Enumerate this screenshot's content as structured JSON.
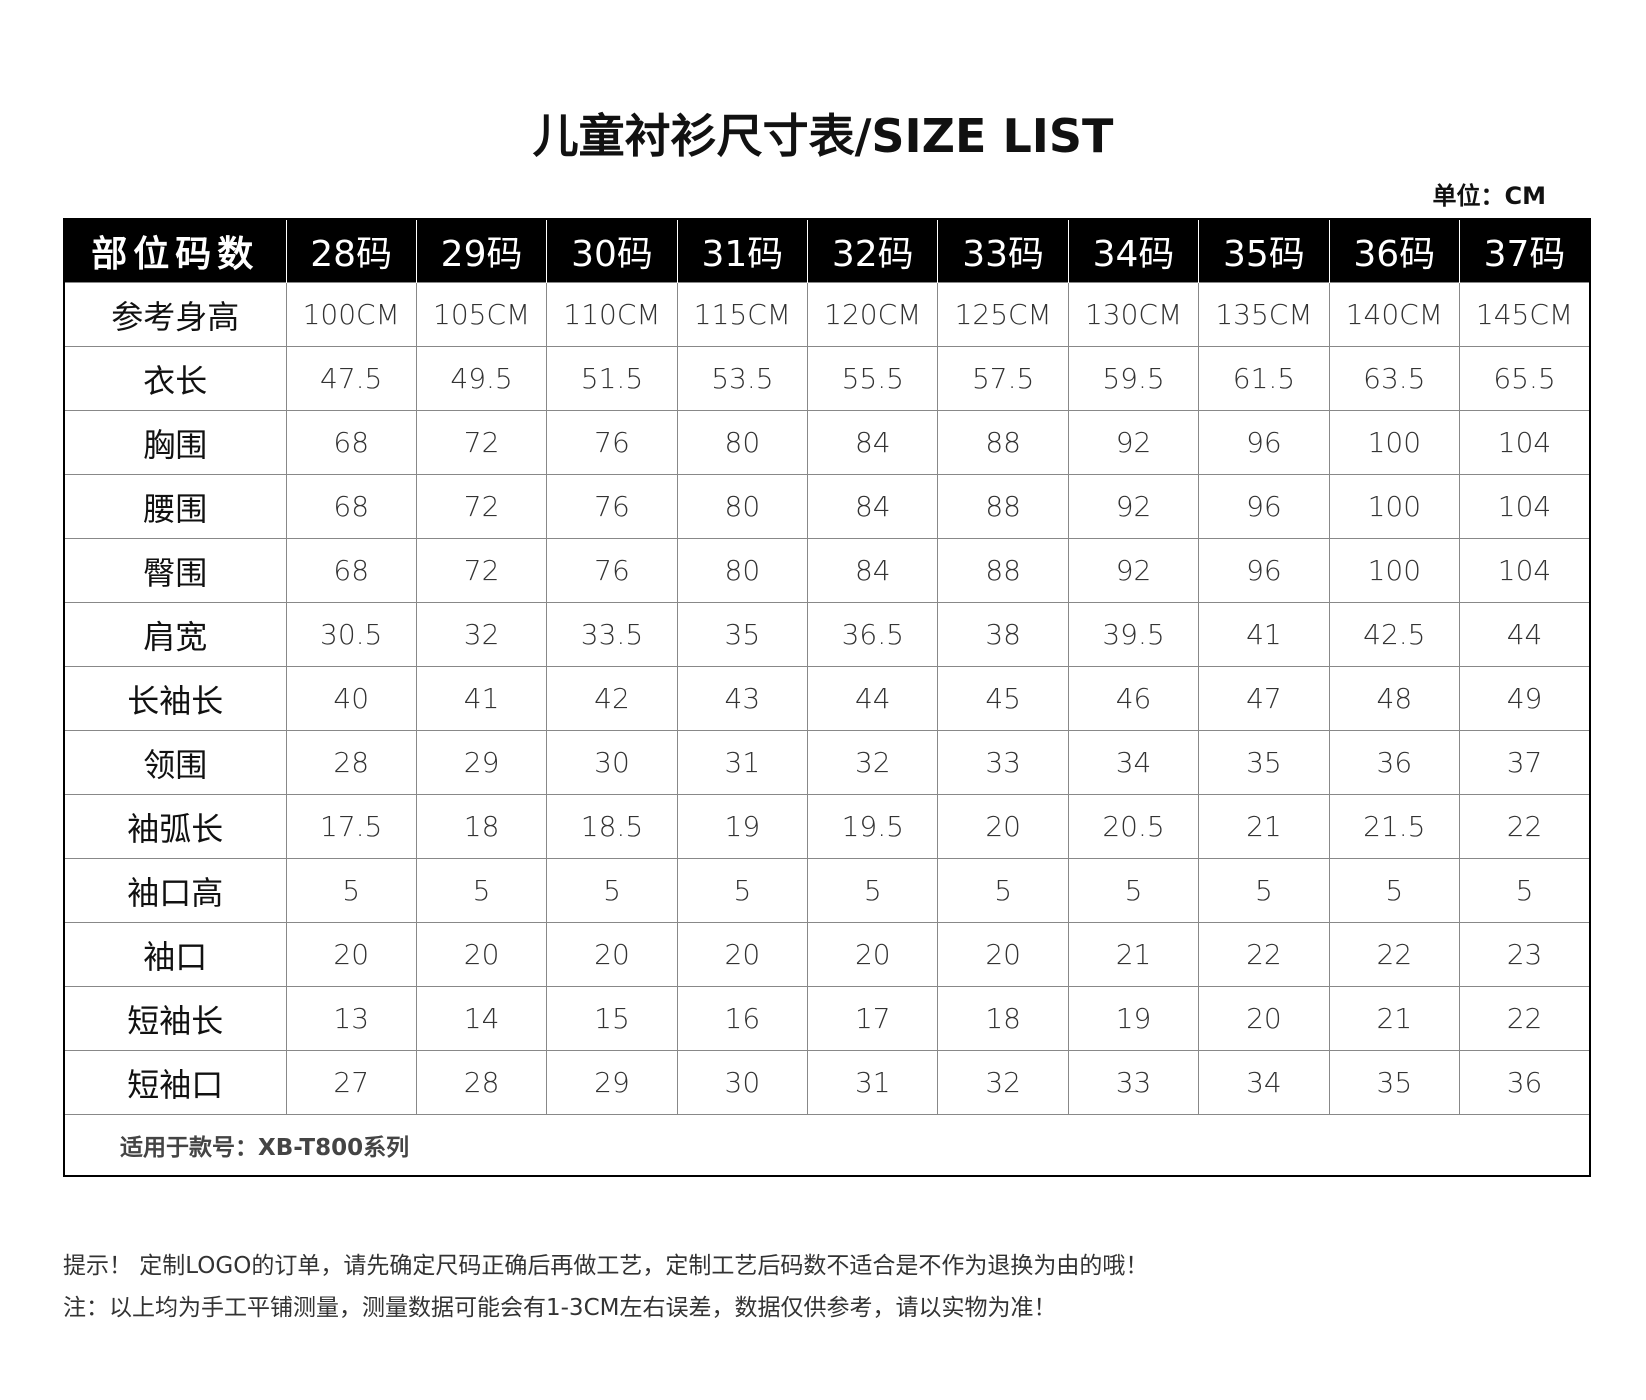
{
  "title": "儿童衬衫尺寸表/SIZE LIST",
  "unit": "单位：CM",
  "table": {
    "header": [
      "部位码数",
      "28码",
      "29码",
      "30码",
      "31码",
      "32码",
      "33码",
      "34码",
      "35码",
      "36码",
      "37码"
    ],
    "rows": [
      {
        "label": "参考身高",
        "values": [
          "100CM",
          "105CM",
          "110CM",
          "115CM",
          "120CM",
          "125CM",
          "130CM",
          "135CM",
          "140CM",
          "145CM"
        ]
      },
      {
        "label": "衣长",
        "values": [
          "47.5",
          "49.5",
          "51.5",
          "53.5",
          "55.5",
          "57.5",
          "59.5",
          "61.5",
          "63.5",
          "65.5"
        ]
      },
      {
        "label": "胸围",
        "values": [
          "68",
          "72",
          "76",
          "80",
          "84",
          "88",
          "92",
          "96",
          "100",
          "104"
        ]
      },
      {
        "label": "腰围",
        "values": [
          "68",
          "72",
          "76",
          "80",
          "84",
          "88",
          "92",
          "96",
          "100",
          "104"
        ]
      },
      {
        "label": "臀围",
        "values": [
          "68",
          "72",
          "76",
          "80",
          "84",
          "88",
          "92",
          "96",
          "100",
          "104"
        ]
      },
      {
        "label": "肩宽",
        "values": [
          "30.5",
          "32",
          "33.5",
          "35",
          "36.5",
          "38",
          "39.5",
          "41",
          "42.5",
          "44"
        ]
      },
      {
        "label": "长袖长",
        "values": [
          "40",
          "41",
          "42",
          "43",
          "44",
          "45",
          "46",
          "47",
          "48",
          "49"
        ]
      },
      {
        "label": "领围",
        "values": [
          "28",
          "29",
          "30",
          "31",
          "32",
          "33",
          "34",
          "35",
          "36",
          "37"
        ]
      },
      {
        "label": "袖弧长",
        "values": [
          "17.5",
          "18",
          "18.5",
          "19",
          "19.5",
          "20",
          "20.5",
          "21",
          "21.5",
          "22"
        ]
      },
      {
        "label": "袖口高",
        "values": [
          "5",
          "5",
          "5",
          "5",
          "5",
          "5",
          "5",
          "5",
          "5",
          "5"
        ]
      },
      {
        "label": "袖口",
        "values": [
          "20",
          "20",
          "20",
          "20",
          "20",
          "20",
          "21",
          "22",
          "22",
          "23"
        ]
      },
      {
        "label": "短袖长",
        "values": [
          "13",
          "14",
          "15",
          "16",
          "17",
          "18",
          "19",
          "20",
          "21",
          "22"
        ]
      },
      {
        "label": "短袖口",
        "values": [
          "27",
          "28",
          "29",
          "30",
          "31",
          "32",
          "33",
          "34",
          "35",
          "36"
        ]
      }
    ],
    "footer": "适用于款号：XB-T800系列"
  },
  "notes": [
    "提示！ 定制LOGO的订单，请先确定尺码正确后再做工艺，定制工艺后码数不适合是不作为退换为由的哦！",
    "注：以上均为手工平铺测量，测量数据可能会有1-3CM左右误差，数据仅供参考，请以实物为准！"
  ]
}
